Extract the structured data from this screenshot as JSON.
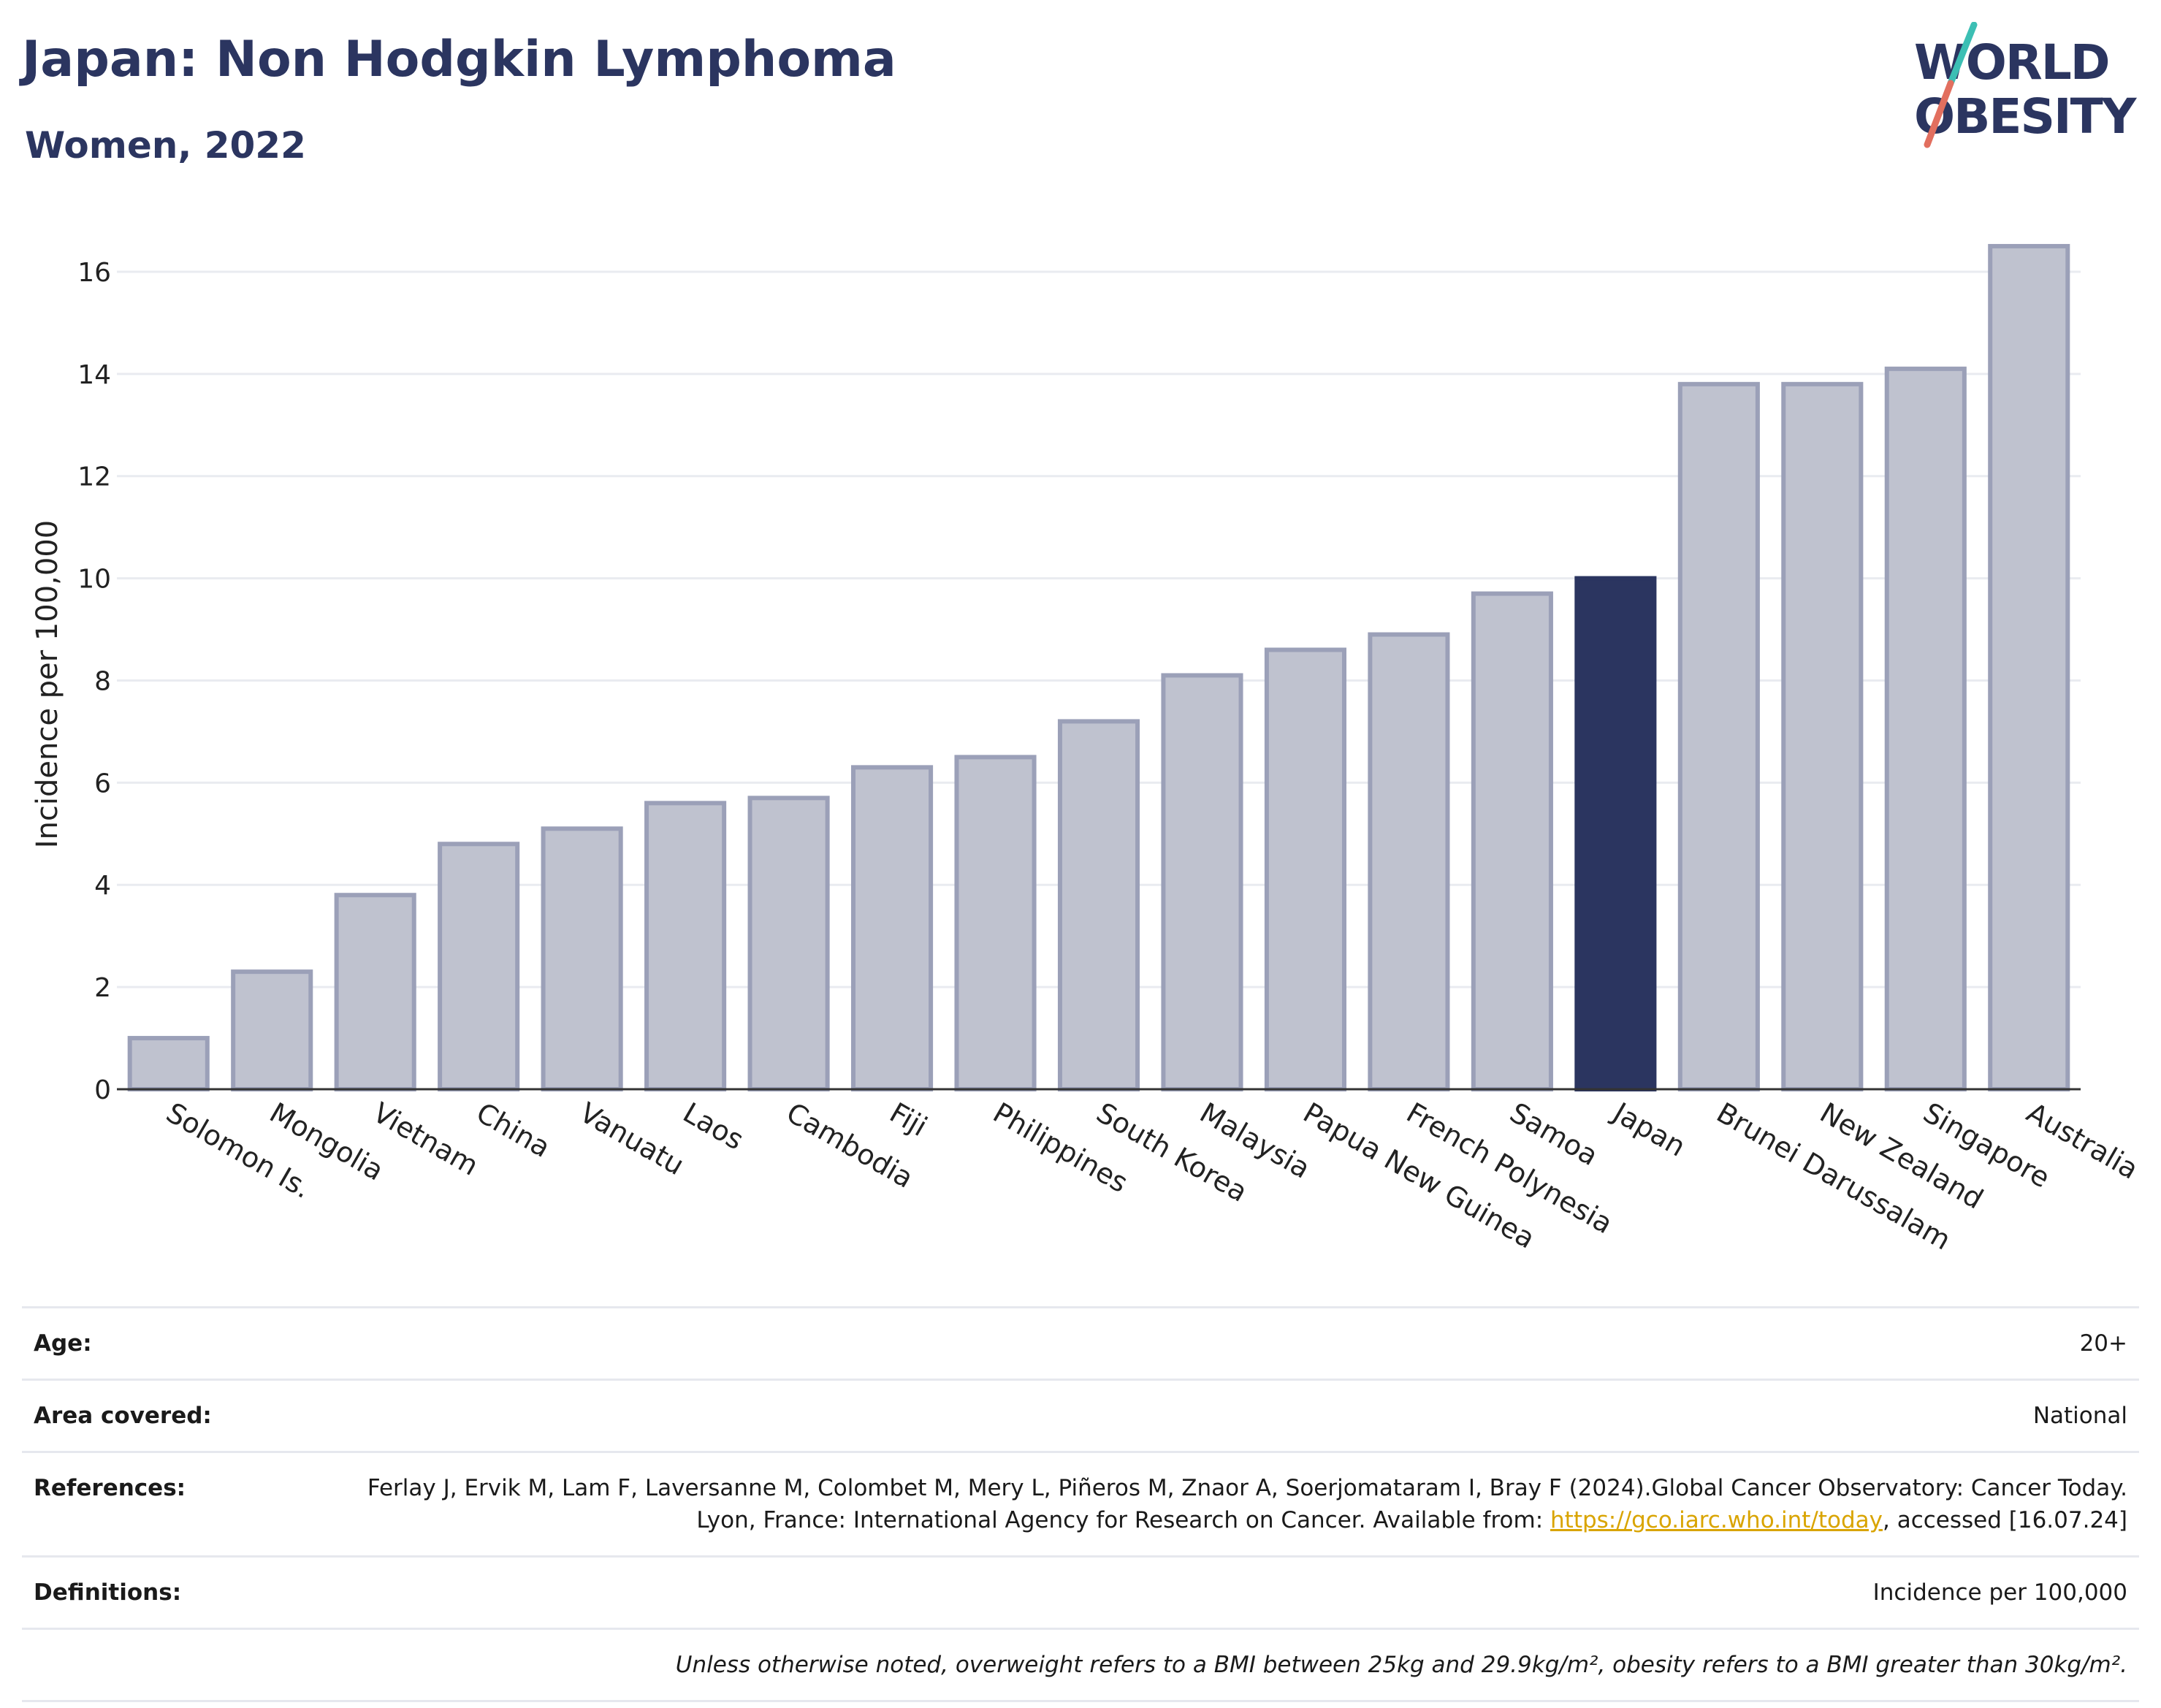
{
  "header": {
    "title": "Japan: Non Hodgkin Lymphoma",
    "subtitle": "Women, 2022",
    "logo_line1": "WORLD",
    "logo_line2": "OBESITY"
  },
  "colors": {
    "highlight": "#2b3560",
    "bar": "#bfc2cf",
    "bar_border": "#9ba0b8",
    "gridline": "#e9ebf0",
    "logo_teal": "#3cbfb4",
    "logo_coral": "#e26f5f"
  },
  "chart_data": {
    "type": "bar",
    "title": "Japan: Non Hodgkin Lymphoma",
    "subtitle": "Women, 2022",
    "ylabel": "Incidence per 100,000",
    "xlabel": "",
    "ylim": [
      0,
      17
    ],
    "yticks": [
      0,
      2,
      4,
      6,
      8,
      10,
      12,
      14,
      16
    ],
    "grid": true,
    "highlight": "Japan",
    "categories": [
      "Solomon Is.",
      "Mongolia",
      "Vietnam",
      "China",
      "Vanuatu",
      "Laos",
      "Cambodia",
      "Fiji",
      "Philippines",
      "South Korea",
      "Malaysia",
      "Papua New Guinea",
      "French Polynesia",
      "Samoa",
      "Japan",
      "Brunei Darussalam",
      "New Zealand",
      "Singapore",
      "Australia"
    ],
    "values": [
      1.0,
      2.3,
      3.8,
      4.8,
      5.1,
      5.6,
      5.7,
      6.3,
      6.5,
      7.2,
      8.1,
      8.6,
      8.9,
      9.7,
      10.0,
      13.8,
      13.8,
      14.1,
      16.5
    ]
  },
  "info": {
    "age_label": "Age:",
    "age_value": "20+",
    "area_label": "Area covered:",
    "area_value": "National",
    "references_label": "References:",
    "references_text1": "Ferlay J, Ervik M, Lam F, Laversanne M, Colombet M, Mery L, Piñeros M, Znaor A, Soerjomataram I, Bray F (2024).Global Cancer Observatory: Cancer Today. Lyon, France: International Agency for Research on Cancer. Available from: ",
    "references_link": "https://gco.iarc.who.int/today",
    "references_text2": ", accessed [16.07.24]",
    "definitions_label": "Definitions:",
    "definitions_value": "Incidence per 100,000",
    "note": "Unless otherwise noted, overweight refers to a BMI between 25kg and 29.9kg/m², obesity refers to a BMI greater than 30kg/m²."
  }
}
